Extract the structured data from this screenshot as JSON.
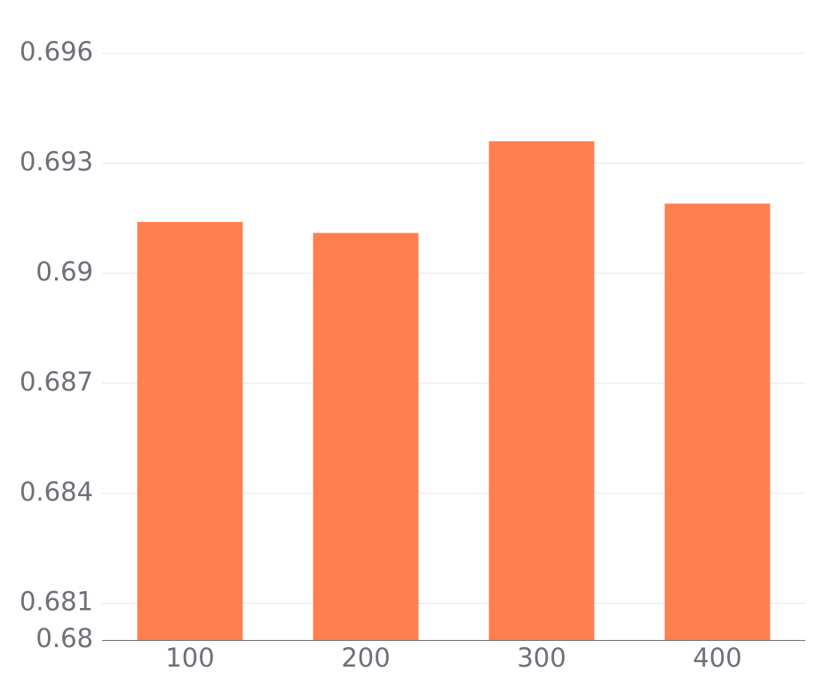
{
  "chart_data": {
    "type": "bar",
    "categories": [
      "100",
      "200",
      "300",
      "400"
    ],
    "values": [
      0.6914,
      0.6911,
      0.6936,
      0.6919
    ],
    "color": "#ff7f50",
    "ylim": [
      0.68,
      0.696
    ],
    "yticks": [
      0.68,
      0.681,
      0.684,
      0.687,
      0.69,
      0.693,
      0.696
    ],
    "grid": true
  }
}
